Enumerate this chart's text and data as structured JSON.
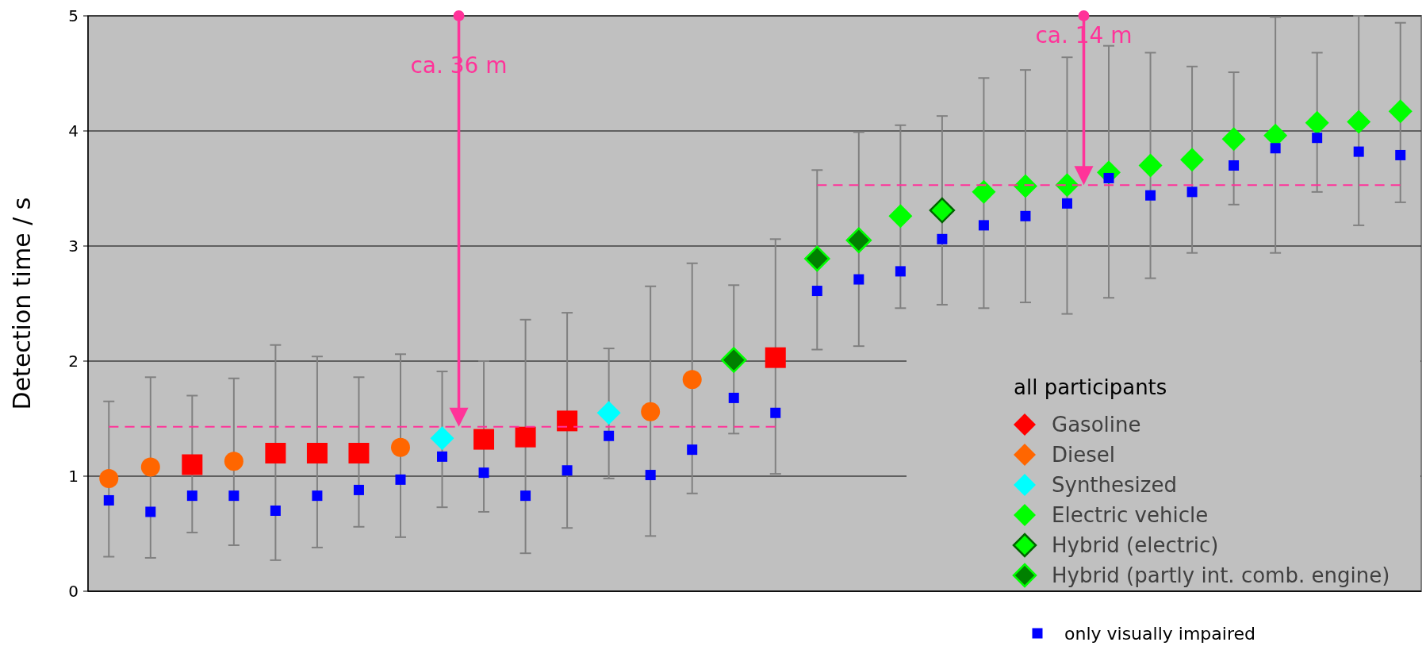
{
  "chart_data": {
    "type": "scatter",
    "ylabel": "Detection time / s",
    "legend_title": "all participants",
    "legend": "bottom right",
    "grid": "y",
    "ylim": [
      0,
      5
    ],
    "yticks": [
      0,
      1,
      2,
      3,
      4,
      5
    ],
    "categories": [
      null,
      null,
      null,
      null,
      null,
      null,
      null,
      null,
      null,
      null,
      null,
      null,
      null,
      null,
      null,
      null,
      null,
      null,
      null,
      null,
      null,
      null,
      null,
      null,
      null,
      null,
      null,
      null,
      null,
      null,
      null,
      null
    ],
    "series": [
      {
        "name": "Gasoline",
        "color": "#ff0000",
        "marker": "square",
        "values": [
          null,
          null,
          1.1,
          null,
          1.2,
          1.2,
          1.2,
          null,
          null,
          1.32,
          1.34,
          1.48,
          null,
          null,
          null,
          null,
          2.03,
          null,
          null,
          null,
          null,
          null,
          null,
          null,
          null,
          null,
          null,
          null,
          null,
          null,
          null,
          null
        ],
        "errors": [
          null,
          null,
          [
            0.51,
            1.7
          ],
          null,
          [
            0.27,
            2.14
          ],
          [
            0.38,
            2.04
          ],
          [
            0.56,
            1.86
          ],
          null,
          null,
          [
            0.69,
            2.0
          ],
          [
            0.33,
            2.36
          ],
          [
            0.55,
            2.42
          ],
          null,
          null,
          null,
          null,
          [
            1.02,
            3.06
          ],
          null,
          null,
          null,
          null,
          null,
          null,
          null,
          null,
          null,
          null,
          null,
          null,
          null,
          null,
          null
        ]
      },
      {
        "name": "Diesel",
        "color": "#ff6600",
        "marker": "circle",
        "values": [
          0.98,
          1.08,
          null,
          1.13,
          null,
          null,
          null,
          1.25,
          null,
          null,
          null,
          null,
          null,
          1.56,
          1.84,
          null,
          null,
          null,
          null,
          null,
          null,
          null,
          null,
          null,
          null,
          null,
          null,
          null,
          null,
          null,
          null,
          null
        ],
        "errors": [
          [
            0.3,
            1.65
          ],
          [
            0.29,
            1.86
          ],
          null,
          [
            0.4,
            1.85
          ],
          null,
          null,
          null,
          [
            0.47,
            2.06
          ],
          null,
          null,
          null,
          null,
          null,
          [
            0.48,
            2.65
          ],
          [
            0.85,
            2.85
          ],
          null,
          null,
          null,
          null,
          null,
          null,
          null,
          null,
          null,
          null,
          null,
          null,
          null,
          null,
          null,
          null,
          null
        ]
      },
      {
        "name": "Synthesized",
        "color": "#00ffff",
        "marker": "diamond",
        "values": [
          null,
          null,
          null,
          null,
          null,
          null,
          null,
          null,
          1.33,
          null,
          null,
          null,
          1.55,
          null,
          null,
          null,
          null,
          null,
          null,
          null,
          null,
          null,
          null,
          null,
          null,
          null,
          null,
          null,
          null,
          null,
          null,
          null
        ],
        "errors": [
          null,
          null,
          null,
          null,
          null,
          null,
          null,
          null,
          [
            0.73,
            1.91
          ],
          null,
          null,
          null,
          [
            0.98,
            2.11
          ],
          null,
          null,
          null,
          null,
          null,
          null,
          null,
          null,
          null,
          null,
          null,
          null,
          null,
          null,
          null,
          null,
          null,
          null,
          null
        ]
      },
      {
        "name": "Electric vehicle",
        "color": "#00ff00",
        "marker": "diamond",
        "values": [
          null,
          null,
          null,
          null,
          null,
          null,
          null,
          null,
          null,
          null,
          null,
          null,
          null,
          null,
          null,
          null,
          null,
          null,
          null,
          3.26,
          null,
          3.47,
          3.52,
          3.53,
          3.64,
          3.7,
          3.75,
          3.93,
          3.96,
          4.07,
          4.08,
          4.17
        ],
        "errors": [
          null,
          null,
          null,
          null,
          null,
          null,
          null,
          null,
          null,
          null,
          null,
          null,
          null,
          null,
          null,
          null,
          null,
          null,
          null,
          [
            2.46,
            4.05
          ],
          null,
          [
            2.46,
            4.46
          ],
          [
            2.51,
            4.53
          ],
          [
            2.41,
            4.64
          ],
          [
            2.55,
            4.74
          ],
          [
            2.72,
            4.68
          ],
          [
            2.94,
            4.56
          ],
          [
            3.36,
            4.51
          ],
          [
            2.94,
            4.99
          ],
          [
            3.47,
            4.68
          ],
          [
            3.18,
            5.0
          ],
          [
            3.38,
            4.94
          ]
        ]
      },
      {
        "name": "Hybrid (electric)",
        "color": "#00ff00",
        "marker": "diamond",
        "values": [
          null,
          null,
          null,
          null,
          null,
          null,
          null,
          null,
          null,
          null,
          null,
          null,
          null,
          null,
          null,
          null,
          null,
          null,
          null,
          null,
          3.31,
          null,
          null,
          null,
          null,
          null,
          null,
          null,
          null,
          null,
          null,
          null
        ],
        "errors": [
          null,
          null,
          null,
          null,
          null,
          null,
          null,
          null,
          null,
          null,
          null,
          null,
          null,
          null,
          null,
          null,
          null,
          null,
          null,
          null,
          [
            2.49,
            4.13
          ],
          null,
          null,
          null,
          null,
          null,
          null,
          null,
          null,
          null,
          null,
          null
        ]
      },
      {
        "name": "Hybrid (partly int. comb. engine)",
        "color": "#008000",
        "marker": "diamond",
        "values": [
          null,
          null,
          null,
          null,
          null,
          null,
          null,
          null,
          null,
          null,
          null,
          null,
          null,
          null,
          null,
          2.01,
          null,
          2.89,
          3.05,
          null,
          null,
          null,
          null,
          null,
          null,
          null,
          null,
          null,
          null,
          null,
          null,
          null
        ],
        "errors": [
          null,
          null,
          null,
          null,
          null,
          null,
          null,
          null,
          null,
          null,
          null,
          null,
          null,
          null,
          null,
          [
            1.37,
            2.66
          ],
          null,
          [
            2.1,
            3.66
          ],
          [
            2.13,
            3.99
          ],
          null,
          null,
          null,
          null,
          null,
          null,
          null,
          null,
          null,
          null,
          null,
          null,
          null
        ]
      },
      {
        "name": "only visually impaired",
        "color": "#0000ff",
        "marker": "square",
        "values": [
          0.79,
          0.69,
          0.83,
          0.83,
          0.7,
          0.83,
          0.88,
          0.97,
          1.17,
          1.03,
          0.83,
          1.05,
          1.35,
          1.01,
          1.23,
          1.68,
          1.55,
          2.61,
          2.71,
          2.78,
          3.06,
          3.18,
          3.26,
          3.37,
          3.59,
          3.44,
          3.47,
          3.7,
          3.85,
          3.94,
          3.82,
          3.79
        ]
      },
      {
        "type": "line",
        "color": "#ff3399",
        "line_style": "dashed",
        "values": [
          1.43,
          1.43,
          1.43,
          1.43,
          1.43,
          1.43,
          1.43,
          1.43,
          1.43,
          1.43,
          1.43,
          1.43,
          1.43,
          1.43,
          1.43,
          1.43,
          1.43,
          null,
          null,
          null,
          null,
          null,
          null,
          null,
          null,
          null,
          null,
          null,
          null,
          null,
          null,
          null
        ]
      },
      {
        "type": "line",
        "color": "#ff3399",
        "line_style": "dashed",
        "values": [
          null,
          null,
          null,
          null,
          null,
          null,
          null,
          null,
          null,
          null,
          null,
          null,
          null,
          null,
          null,
          null,
          null,
          3.53,
          3.53,
          3.53,
          3.53,
          3.53,
          3.53,
          3.53,
          3.53,
          3.53,
          3.53,
          3.53,
          3.53,
          3.53,
          3.53,
          3.53
        ]
      }
    ],
    "annotations": [
      "ca. 36 m",
      "ca. 14 m"
    ]
  }
}
